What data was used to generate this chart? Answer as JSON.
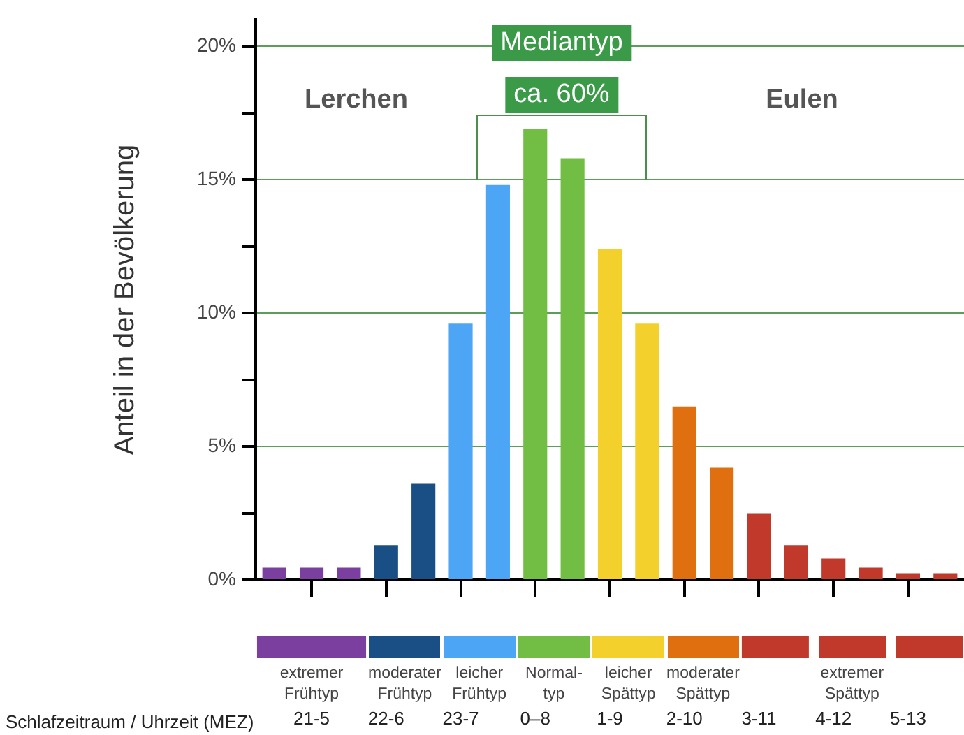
{
  "chart_data": {
    "type": "bar",
    "ylabel": "Anteil in der Bevölkerung",
    "xlabel": "Schlafzeitraum / Uhrzeit (MEZ)",
    "categories": [
      null,
      "21-5",
      null,
      "22-6",
      null,
      "23-7",
      null,
      "0–8",
      null,
      "1-9",
      null,
      "2-10",
      null,
      "3-11",
      null,
      "4-12",
      null,
      "5-13",
      null
    ],
    "series": [
      {
        "name": "extremer Frühtyp",
        "color": "#7b3fa0",
        "values": [
          0.46,
          0.46,
          0.46,
          null,
          null,
          null,
          null,
          null,
          null,
          null,
          null,
          null,
          null,
          null,
          null,
          null,
          null,
          null,
          null
        ]
      },
      {
        "name": "moderater Frühtyp",
        "color": "#1a4f86",
        "values": [
          null,
          null,
          null,
          1.3,
          3.6,
          null,
          null,
          null,
          null,
          null,
          null,
          null,
          null,
          null,
          null,
          null,
          null,
          null,
          null
        ]
      },
      {
        "name": "leicher Frühtyp",
        "color": "#4da6f5",
        "values": [
          null,
          null,
          null,
          null,
          null,
          9.6,
          14.8,
          null,
          null,
          null,
          null,
          null,
          null,
          null,
          null,
          null,
          null,
          null,
          null
        ]
      },
      {
        "name": "Normal-typ",
        "color": "#72be44",
        "values": [
          null,
          null,
          null,
          null,
          null,
          null,
          null,
          16.9,
          15.8,
          null,
          null,
          null,
          null,
          null,
          null,
          null,
          null,
          null,
          null
        ]
      },
      {
        "name": "leicher Spättyp",
        "color": "#f3d02c",
        "values": [
          null,
          null,
          null,
          null,
          null,
          null,
          null,
          null,
          null,
          12.4,
          9.6,
          null,
          null,
          null,
          null,
          null,
          null,
          null,
          null
        ]
      },
      {
        "name": "moderater Spättyp",
        "color": "#e0700f",
        "values": [
          null,
          null,
          null,
          null,
          null,
          null,
          null,
          null,
          null,
          null,
          null,
          6.5,
          4.2,
          null,
          null,
          null,
          null,
          null,
          null
        ]
      },
      {
        "name": "extremer Spättyp",
        "color": "#c0392b",
        "values": [
          null,
          null,
          null,
          null,
          null,
          null,
          null,
          null,
          null,
          null,
          null,
          null,
          null,
          2.5,
          1.3,
          0.8,
          0.46,
          0.25,
          0.25
        ]
      }
    ],
    "ylim": [
      0,
      21
    ],
    "yticks": [
      {
        "value": 0,
        "label": "0%"
      },
      {
        "value": 2.5,
        "label": null
      },
      {
        "value": 5,
        "label": "5%"
      },
      {
        "value": 7.5,
        "label": null
      },
      {
        "value": 10,
        "label": "10%"
      },
      {
        "value": 12.5,
        "label": null
      },
      {
        "value": 15,
        "label": "15%"
      },
      {
        "value": 17.5,
        "label": null
      },
      {
        "value": 20,
        "label": "20%"
      }
    ],
    "grid": "y",
    "legend": "bottom",
    "annotations": [
      "Lerchen",
      "Mediantyp",
      "ca. 60%",
      "Eulen"
    ]
  }
}
